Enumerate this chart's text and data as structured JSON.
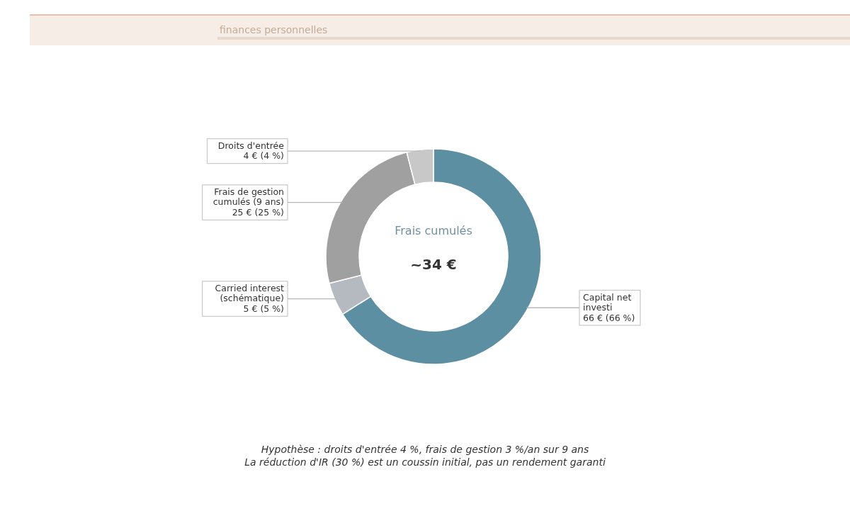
{
  "chart_data": {
    "type": "donut",
    "subtitle": "finances personnelles",
    "categories": [
      "Capital net investi",
      "Carried interest (schématique)",
      "Frais de gestion cumulés (9 ans)",
      "Droits d'entrée"
    ],
    "values": [
      66,
      5,
      25,
      4
    ],
    "colors": [
      "#5d8fa2",
      "#b5bac1",
      "#a0a0a0",
      "#c8c8c8"
    ],
    "value_labels": [
      "66 € (66 %)",
      "5 € (5 %)",
      "25 € (25 %)",
      "4 € (4 %)"
    ],
    "annotations": [
      "Frais cumulés",
      "~34 €",
      "Hypothèse : droits d'entrée 4 %, frais de gestion 3 %/an sur 9 ans",
      "La réduction d'IR (30 %) est un coussin initial, pas un rendement garanti"
    ]
  }
}
